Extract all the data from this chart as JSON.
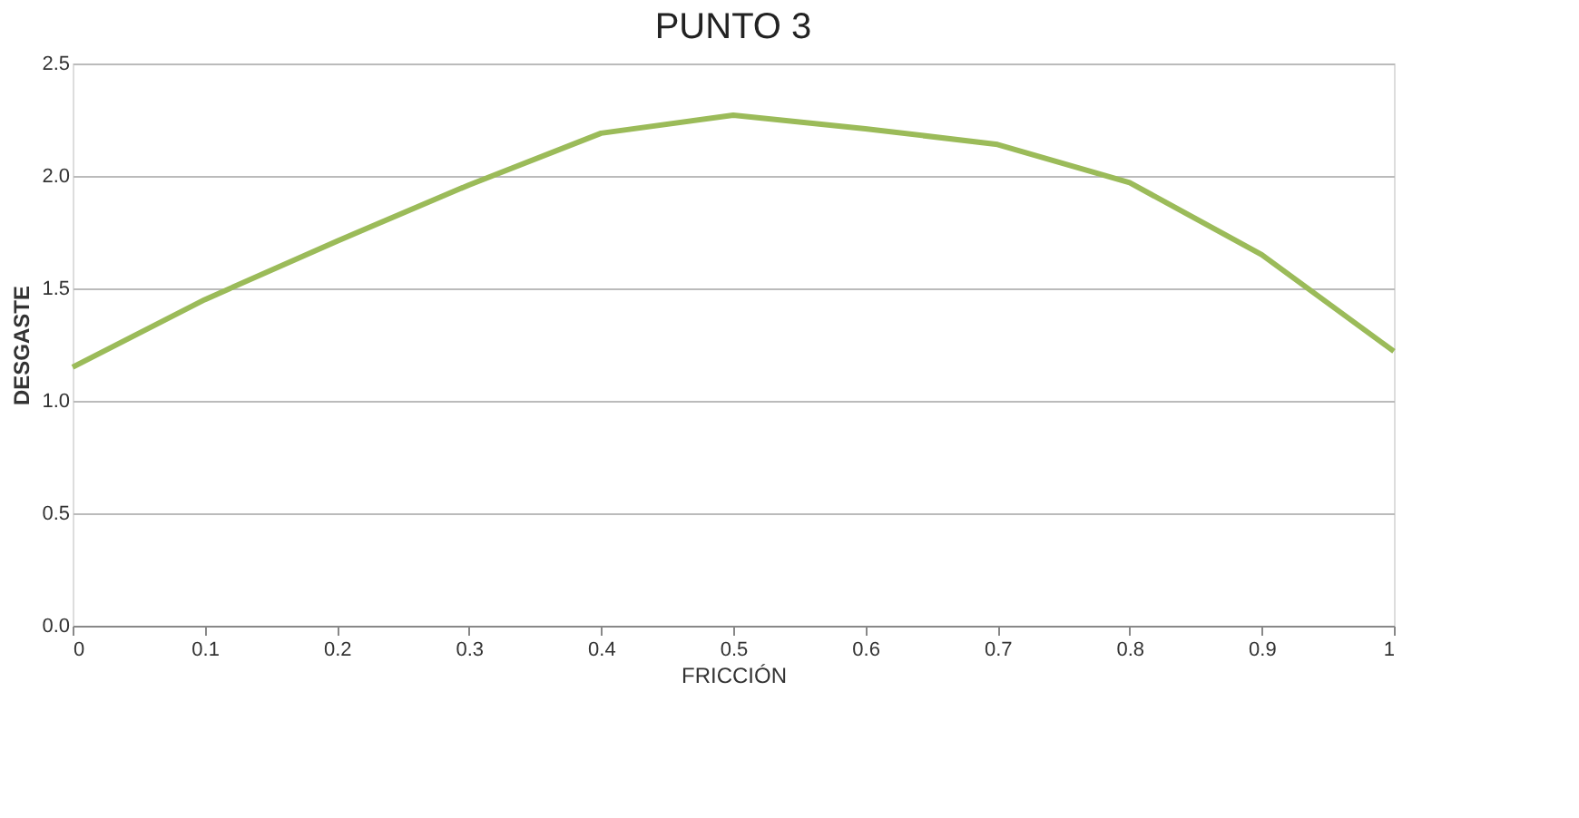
{
  "chart_data": {
    "type": "line",
    "title": "PUNTO 3",
    "xlabel": "FRICCIÓN",
    "ylabel": "DESGASTE",
    "x": [
      0,
      0.1,
      0.2,
      0.3,
      0.4,
      0.5,
      0.6,
      0.7,
      0.8,
      0.9,
      1
    ],
    "series": [
      {
        "color": "#9bbb59",
        "values": [
          1.15,
          1.45,
          1.71,
          1.96,
          2.19,
          2.27,
          2.21,
          2.14,
          1.97,
          1.65,
          1.22
        ]
      }
    ],
    "xlim": [
      0,
      1
    ],
    "xticks": [
      0,
      0.1,
      0.2,
      0.3,
      0.4,
      0.5,
      0.6,
      0.7,
      0.8,
      0.9,
      1
    ],
    "ylim": [
      0,
      2.5
    ],
    "yticks": [
      {
        "value": 0,
        "label": "0.0"
      },
      {
        "value": 0.5,
        "label": "0.5"
      },
      {
        "value": 1,
        "label": "1.0"
      },
      {
        "value": 1.5,
        "label": "1.5"
      },
      {
        "value": 2,
        "label": "2.0"
      },
      {
        "value": 2.5,
        "label": "2.5"
      }
    ],
    "grid": "y",
    "marker": "none",
    "line_style": "solid"
  }
}
